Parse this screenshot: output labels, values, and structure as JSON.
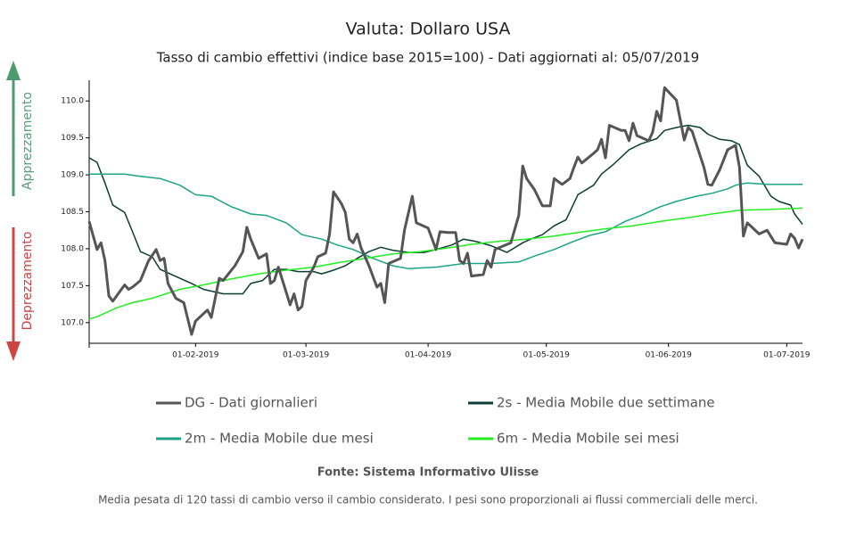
{
  "chart_data": {
    "type": "line",
    "title": "Valuta: Dollaro USA",
    "subtitle": "Tasso di cambio effettivi (indice base 2015=100) - Dati aggiornati al: 05/07/2019",
    "annotations": [
      "Apprezzamento",
      "Deprezzamento"
    ],
    "source": "Fonte: Sistema Informativo Ulisse",
    "note": "Media pesata di 120 tassi di cambio verso il cambio considerato. I pesi sono proporzionali ai flussi commerciali delle merci.",
    "xlim": [
      "05-01-2019",
      "05-07-2019"
    ],
    "xticks": [
      "01-02-2019",
      "01-03-2019",
      "01-04-2019",
      "01-05-2019",
      "01-06-2019",
      "01-07-2019"
    ],
    "ylim": [
      106.72,
      110.28
    ],
    "yticks": [
      {
        "value": 107,
        "label": "107.0"
      },
      107.5,
      {
        "value": 108,
        "label": "108.0"
      },
      108.5,
      {
        "value": 109,
        "label": "109.0"
      },
      109.5,
      {
        "value": 110,
        "label": "110.0"
      }
    ],
    "grid": false,
    "series": [
      {
        "name": "DG - Dati giornalieri",
        "color": "#555555",
        "width": 3,
        "x": [
          "05-01-2019",
          "07-01-2019",
          "08-01-2019",
          "09-01-2019",
          "10-01-2019",
          "11-01-2019",
          "14-01-2019",
          "15-01-2019",
          "16-01-2019",
          "18-01-2019",
          "20-01-2019",
          "22-01-2019",
          "23-01-2019",
          "24-01-2019",
          "25-01-2019",
          "27-01-2019",
          "29-01-2019",
          "31-01-2019",
          "01-02-2019",
          "04-02-2019",
          "05-02-2019",
          "07-02-2019",
          "08-02-2019",
          "11-02-2019",
          "13-02-2019",
          "14-02-2019",
          "15-02-2019",
          "17-02-2019",
          "19-02-2019",
          "20-02-2019",
          "21-02-2019",
          "22-02-2019",
          "25-02-2019",
          "26-02-2019",
          "27-02-2019",
          "28-02-2019",
          "01-03-2019",
          "03-03-2019",
          "04-03-2019",
          "06-03-2019",
          "07-03-2019",
          "08-03-2019",
          "10-03-2019",
          "11-03-2019",
          "12-03-2019",
          "13-03-2019",
          "14-03-2019",
          "15-03-2019",
          "17-03-2019",
          "19-03-2019",
          "20-03-2019",
          "21-03-2019",
          "22-03-2019",
          "25-03-2019",
          "26-03-2019",
          "28-03-2019",
          "29-03-2019",
          "01-04-2019",
          "03-04-2019",
          "04-04-2019",
          "06-04-2019",
          "08-04-2019",
          "09-04-2019",
          "10-04-2019",
          "11-04-2019",
          "12-04-2019",
          "15-04-2019",
          "16-04-2019",
          "17-04-2019",
          "18-04-2019",
          "22-04-2019",
          "24-04-2019",
          "25-04-2019",
          "26-04-2019",
          "28-04-2019",
          "30-04-2019",
          "02-05-2019",
          "03-05-2019",
          "05-05-2019",
          "07-05-2019",
          "08-05-2019",
          "09-05-2019",
          "10-05-2019",
          "13-05-2019",
          "14-05-2019",
          "15-05-2019",
          "16-05-2019",
          "17-05-2019",
          "20-05-2019",
          "21-05-2019",
          "22-05-2019",
          "23-05-2019",
          "24-05-2019",
          "27-05-2019",
          "28-05-2019",
          "29-05-2019",
          "30-05-2019",
          "31-05-2019",
          "03-06-2019",
          "05-06-2019",
          "06-06-2019",
          "07-06-2019",
          "10-06-2019",
          "11-06-2019",
          "12-06-2019",
          "14-06-2019",
          "16-06-2019",
          "18-06-2019",
          "19-06-2019",
          "20-06-2019",
          "21-06-2019",
          "24-06-2019",
          "26-06-2019",
          "28-06-2019",
          "01-07-2019",
          "02-07-2019",
          "03-07-2019",
          "04-07-2019",
          "05-07-2019"
        ],
        "values": [
          108.37,
          107.99,
          108.08,
          107.84,
          107.36,
          107.29,
          107.51,
          107.45,
          107.48,
          107.57,
          107.83,
          107.99,
          107.84,
          107.87,
          107.53,
          107.33,
          107.27,
          106.84,
          107.02,
          107.17,
          107.07,
          107.6,
          107.57,
          107.77,
          107.96,
          108.29,
          108.13,
          107.87,
          107.93,
          107.53,
          107.57,
          107.75,
          107.24,
          107.39,
          107.17,
          107.22,
          107.57,
          107.75,
          107.89,
          107.94,
          108.2,
          108.77,
          108.61,
          108.49,
          108.13,
          108.08,
          108.2,
          108.01,
          107.77,
          107.48,
          107.53,
          107.27,
          107.8,
          107.87,
          108.25,
          108.71,
          108.35,
          108.28,
          107.99,
          108.23,
          108.22,
          108.22,
          107.84,
          107.8,
          107.94,
          107.63,
          107.65,
          107.84,
          107.75,
          107.99,
          108.08,
          108.45,
          109.12,
          108.95,
          108.8,
          108.58,
          108.58,
          108.95,
          108.87,
          108.95,
          109.1,
          109.24,
          109.16,
          109.29,
          109.34,
          109.48,
          109.23,
          109.67,
          109.6,
          109.6,
          109.46,
          109.7,
          109.53,
          109.46,
          109.58,
          109.86,
          109.73,
          110.18,
          110.01,
          109.47,
          109.64,
          109.59,
          109.1,
          108.87,
          108.86,
          109.07,
          109.34,
          109.4,
          109.1,
          108.17,
          108.35,
          108.2,
          108.25,
          108.08,
          108.06,
          108.2,
          108.14,
          108.01,
          108.13
        ]
      },
      {
        "name": "2s - Media Mobile due settimane",
        "color": "#0b3d35",
        "width": 1.5,
        "x": [
          "05-01-2019",
          "07-01-2019",
          "09-01-2019",
          "11-01-2019",
          "14-01-2019",
          "16-01-2019",
          "18-01-2019",
          "21-01-2019",
          "23-01-2019",
          "28-01-2019",
          "31-01-2019",
          "03-02-2019",
          "08-02-2019",
          "13-02-2019",
          "15-02-2019",
          "18-02-2019",
          "21-02-2019",
          "24-02-2019",
          "27-02-2019",
          "03-03-2019",
          "05-03-2019",
          "08-03-2019",
          "11-03-2019",
          "14-03-2019",
          "17-03-2019",
          "20-03-2019",
          "23-03-2019",
          "27-03-2019",
          "31-03-2019",
          "03-04-2019",
          "07-04-2019",
          "10-04-2019",
          "13-04-2019",
          "17-04-2019",
          "21-04-2019",
          "25-04-2019",
          "27-04-2019",
          "30-04-2019",
          "03-05-2019",
          "06-05-2019",
          "09-05-2019",
          "13-05-2019",
          "15-05-2019",
          "18-05-2019",
          "22-05-2019",
          "25-05-2019",
          "29-05-2019",
          "31-05-2019",
          "03-06-2019",
          "06-06-2019",
          "09-06-2019",
          "11-06-2019",
          "14-06-2019",
          "17-06-2019",
          "19-06-2019",
          "21-06-2019",
          "24-06-2019",
          "27-06-2019",
          "29-06-2019",
          "02-07-2019",
          "03-07-2019",
          "05-07-2019"
        ],
        "values": [
          109.23,
          109.17,
          108.89,
          108.59,
          108.49,
          108.23,
          107.96,
          107.89,
          107.72,
          107.6,
          107.53,
          107.45,
          107.39,
          107.39,
          107.53,
          107.57,
          107.72,
          107.72,
          107.69,
          107.69,
          107.66,
          107.71,
          107.77,
          107.87,
          107.96,
          108.02,
          107.98,
          107.95,
          107.95,
          107.99,
          108.05,
          108.13,
          108.1,
          108.04,
          107.95,
          108.08,
          108.13,
          108.19,
          108.31,
          108.39,
          108.73,
          108.86,
          109.01,
          109.14,
          109.34,
          109.42,
          109.49,
          109.6,
          109.64,
          109.67,
          109.64,
          109.55,
          109.48,
          109.46,
          109.41,
          109.13,
          108.98,
          108.71,
          108.64,
          108.59,
          108.47,
          108.33
        ]
      },
      {
        "name": "2m - Media Mobile due mesi",
        "color": "#1aa384",
        "width": 1.5,
        "x": [
          "05-01-2019",
          "14-01-2019",
          "18-01-2019",
          "23-01-2019",
          "28-01-2019",
          "01-02-2019",
          "05-02-2019",
          "10-02-2019",
          "15-02-2019",
          "19-02-2019",
          "24-02-2019",
          "28-02-2019",
          "05-03-2019",
          "09-03-2019",
          "13-03-2019",
          "18-03-2019",
          "23-03-2019",
          "27-03-2019",
          "03-04-2019",
          "10-04-2019",
          "17-04-2019",
          "24-04-2019",
          "28-04-2019",
          "03-05-2019",
          "07-05-2019",
          "12-05-2019",
          "16-05-2019",
          "21-05-2019",
          "25-05-2019",
          "30-05-2019",
          "03-06-2019",
          "08-06-2019",
          "12-06-2019",
          "16-06-2019",
          "18-06-2019",
          "21-06-2019",
          "26-06-2019",
          "05-07-2019"
        ],
        "values": [
          109.01,
          109.01,
          108.98,
          108.95,
          108.86,
          108.73,
          108.71,
          108.57,
          108.47,
          108.45,
          108.35,
          108.19,
          108.13,
          108.05,
          107.99,
          107.87,
          107.77,
          107.73,
          107.75,
          107.8,
          107.8,
          107.82,
          107.9,
          107.99,
          108.08,
          108.18,
          108.23,
          108.37,
          108.45,
          108.57,
          108.64,
          108.71,
          108.75,
          108.81,
          108.86,
          108.89,
          108.87,
          108.87
        ]
      },
      {
        "name": "6m - Media Mobile sei mesi",
        "color": "#22ee22",
        "width": 1.5,
        "x": [
          "05-01-2019",
          "07-01-2019",
          "12-01-2019",
          "16-01-2019",
          "21-01-2019",
          "28-01-2019",
          "03-02-2019",
          "10-02-2019",
          "17-02-2019",
          "24-02-2019",
          "03-03-2019",
          "09-03-2019",
          "16-03-2019",
          "23-03-2019",
          "30-03-2019",
          "06-04-2019",
          "12-04-2019",
          "19-04-2019",
          "26-04-2019",
          "03-05-2019",
          "09-05-2019",
          "16-05-2019",
          "23-05-2019",
          "30-05-2019",
          "06-06-2019",
          "12-06-2019",
          "19-06-2019",
          "26-06-2019",
          "05-07-2019"
        ],
        "values": [
          107.05,
          107.08,
          107.2,
          107.27,
          107.33,
          107.45,
          107.51,
          107.59,
          107.66,
          107.71,
          107.75,
          107.81,
          107.87,
          107.93,
          107.96,
          108.01,
          108.06,
          108.1,
          108.13,
          108.17,
          108.22,
          108.27,
          108.31,
          108.37,
          108.42,
          108.47,
          108.52,
          108.53,
          108.55
        ]
      }
    ]
  }
}
